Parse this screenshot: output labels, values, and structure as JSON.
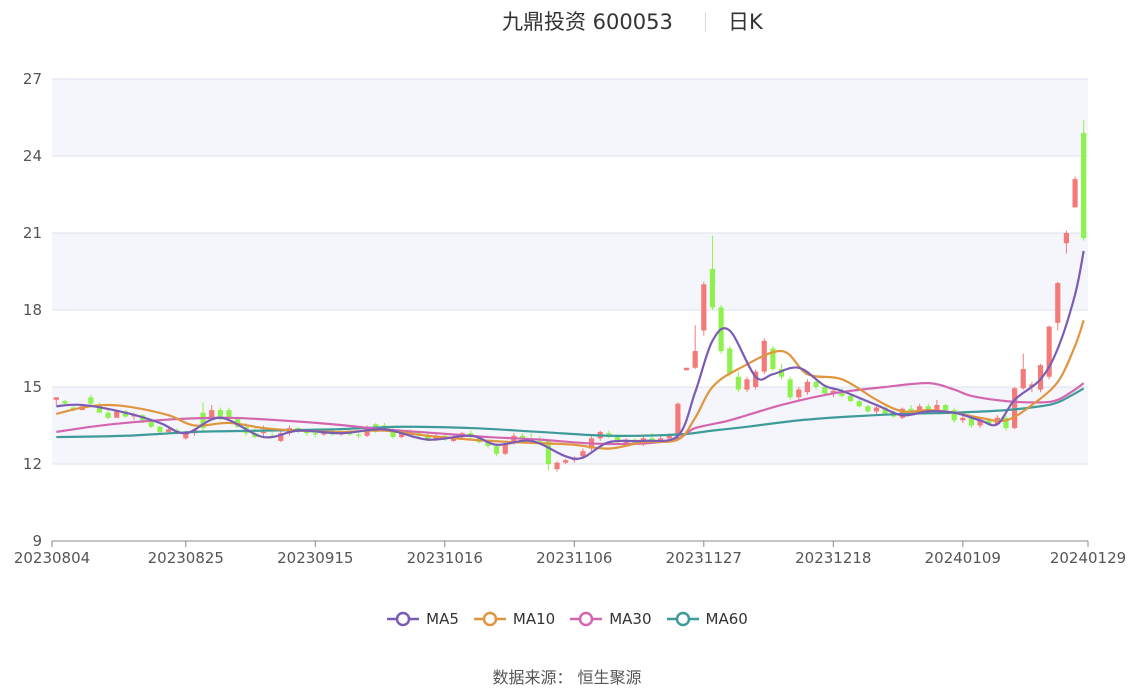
{
  "header": {
    "title": "九鼎投资 600053",
    "subtitle": "日K"
  },
  "source_text": "数据来源： 恒生聚源",
  "colors": {
    "up": "#f47a7a",
    "down": "#8ef24e",
    "MA5": "#7b5cb5",
    "MA10": "#e0963f",
    "MA30": "#d466b0",
    "MA60": "#3f9a9a",
    "band": "#f5f6fb",
    "grid": "#dde1ee",
    "axis": "#555555"
  },
  "legend": [
    {
      "name": "MA5",
      "color": "#7b5cb5"
    },
    {
      "name": "MA10",
      "color": "#e0963f"
    },
    {
      "name": "MA30",
      "color": "#d466b0"
    },
    {
      "name": "MA60",
      "color": "#3f9a9a"
    }
  ],
  "chart_data": {
    "type": "candlestick",
    "title": "九鼎投资 600053",
    "subtitle": "日K",
    "ylim": [
      9,
      27
    ],
    "yticks": [
      9,
      12,
      15,
      18,
      21,
      24,
      27
    ],
    "x_tick_labels": [
      "20230804",
      "20230825",
      "20230915",
      "20231016",
      "20231106",
      "20231127",
      "20231218",
      "20240109",
      "20240129"
    ],
    "x_tick_index": [
      0,
      15,
      30,
      45,
      60,
      75,
      90,
      105,
      119
    ],
    "grid": true,
    "legend_position": "bottom-center",
    "ohlc": [
      [
        14.5,
        14.6,
        14.3,
        14.6
      ],
      [
        14.45,
        14.5,
        14.3,
        14.35
      ],
      [
        14.2,
        14.25,
        14.05,
        14.1
      ],
      [
        14.1,
        14.3,
        14.1,
        14.25
      ],
      [
        14.6,
        14.7,
        14.3,
        14.35
      ],
      [
        14.3,
        14.4,
        14.0,
        14.0
      ],
      [
        14.0,
        14.1,
        13.75,
        13.8
      ],
      [
        13.8,
        14.1,
        13.8,
        14.05
      ],
      [
        14.05,
        14.1,
        13.8,
        13.85
      ],
      [
        13.85,
        14.0,
        13.7,
        13.95
      ],
      [
        13.9,
        13.95,
        13.6,
        13.65
      ],
      [
        13.65,
        13.7,
        13.4,
        13.45
      ],
      [
        13.45,
        13.5,
        13.2,
        13.25
      ],
      [
        13.25,
        13.4,
        13.2,
        13.35
      ],
      [
        13.3,
        13.4,
        13.15,
        13.2
      ],
      [
        13.0,
        13.3,
        12.95,
        13.2
      ],
      [
        13.2,
        13.4,
        13.1,
        13.35
      ],
      [
        14.0,
        14.4,
        13.3,
        13.4
      ],
      [
        13.8,
        14.3,
        13.7,
        14.1
      ],
      [
        14.1,
        14.2,
        13.7,
        13.75
      ],
      [
        14.1,
        14.2,
        13.7,
        13.8
      ],
      [
        13.75,
        13.85,
        13.4,
        13.45
      ],
      [
        13.45,
        13.6,
        13.1,
        13.2
      ],
      [
        13.2,
        13.4,
        13.0,
        13.05
      ],
      [
        13.2,
        13.5,
        13.1,
        13.25
      ],
      [
        13.1,
        13.25,
        13.0,
        13.05
      ],
      [
        12.9,
        13.3,
        12.85,
        13.2
      ],
      [
        13.2,
        13.5,
        13.1,
        13.4
      ],
      [
        13.4,
        13.45,
        13.2,
        13.25
      ],
      [
        13.25,
        13.35,
        13.1,
        13.2
      ],
      [
        13.2,
        13.3,
        13.05,
        13.15
      ],
      [
        13.15,
        13.3,
        13.1,
        13.25
      ],
      [
        13.2,
        13.3,
        13.1,
        13.15
      ],
      [
        13.15,
        13.3,
        13.1,
        13.25
      ],
      [
        13.25,
        13.35,
        13.1,
        13.15
      ],
      [
        13.15,
        13.25,
        13.0,
        13.1
      ],
      [
        13.1,
        13.5,
        13.05,
        13.45
      ],
      [
        13.55,
        13.6,
        13.2,
        13.25
      ],
      [
        13.5,
        13.6,
        13.3,
        13.35
      ],
      [
        13.35,
        13.4,
        13.0,
        13.05
      ],
      [
        13.05,
        13.3,
        13.0,
        13.25
      ],
      [
        13.25,
        13.35,
        13.1,
        13.15
      ],
      [
        13.2,
        13.3,
        13.05,
        13.1
      ],
      [
        13.1,
        13.2,
        12.9,
        12.95
      ],
      [
        12.95,
        13.2,
        12.9,
        13.1
      ],
      [
        13.1,
        13.15,
        12.9,
        12.95
      ],
      [
        12.9,
        13.1,
        12.85,
        13.05
      ],
      [
        13.05,
        13.25,
        13.0,
        13.2
      ],
      [
        13.2,
        13.3,
        13.0,
        13.05
      ],
      [
        13.05,
        13.1,
        12.8,
        12.85
      ],
      [
        12.85,
        12.95,
        12.6,
        12.7
      ],
      [
        12.7,
        12.8,
        12.3,
        12.4
      ],
      [
        12.4,
        12.9,
        12.35,
        12.8
      ],
      [
        12.8,
        13.2,
        12.75,
        13.1
      ],
      [
        13.1,
        13.2,
        12.9,
        12.95
      ],
      [
        12.95,
        13.2,
        12.85,
        12.9
      ],
      [
        12.9,
        13.1,
        12.8,
        12.85
      ],
      [
        12.9,
        12.95,
        11.75,
        12.0
      ],
      [
        11.8,
        12.1,
        11.7,
        12.05
      ],
      [
        12.05,
        12.2,
        12.0,
        12.15
      ],
      [
        12.15,
        12.3,
        12.05,
        12.25
      ],
      [
        12.3,
        12.6,
        12.2,
        12.5
      ],
      [
        12.6,
        13.1,
        12.5,
        13.0
      ],
      [
        13.0,
        13.3,
        12.9,
        13.25
      ],
      [
        13.2,
        13.3,
        13.0,
        13.05
      ],
      [
        13.05,
        13.15,
        12.8,
        12.85
      ],
      [
        12.8,
        13.0,
        12.7,
        12.95
      ],
      [
        12.95,
        13.0,
        12.75,
        12.8
      ],
      [
        12.8,
        13.1,
        12.7,
        13.0
      ],
      [
        13.0,
        13.2,
        12.85,
        12.9
      ],
      [
        12.9,
        13.1,
        12.8,
        13.0
      ],
      [
        13.0,
        13.2,
        12.9,
        13.15
      ],
      [
        13.1,
        14.4,
        13.1,
        14.35
      ],
      [
        15.65,
        15.75,
        15.65,
        15.75
      ],
      [
        15.75,
        17.4,
        15.7,
        16.4
      ],
      [
        17.2,
        19.1,
        17.0,
        19.0
      ],
      [
        19.6,
        20.9,
        18.0,
        18.1
      ],
      [
        18.1,
        18.2,
        16.3,
        16.4
      ],
      [
        16.5,
        16.6,
        15.4,
        15.5
      ],
      [
        15.4,
        15.6,
        14.8,
        14.9
      ],
      [
        14.9,
        15.4,
        14.8,
        15.3
      ],
      [
        15.0,
        15.7,
        14.9,
        15.6
      ],
      [
        15.6,
        16.9,
        15.5,
        16.8
      ],
      [
        16.5,
        16.6,
        15.6,
        15.7
      ],
      [
        15.7,
        15.9,
        15.3,
        15.4
      ],
      [
        15.3,
        15.4,
        14.5,
        14.6
      ],
      [
        14.6,
        15.0,
        14.5,
        14.9
      ],
      [
        14.8,
        15.3,
        14.7,
        15.2
      ],
      [
        15.2,
        15.3,
        14.9,
        15.0
      ],
      [
        15.0,
        15.1,
        14.7,
        14.75
      ],
      [
        14.75,
        14.9,
        14.6,
        14.85
      ],
      [
        14.85,
        14.95,
        14.6,
        14.65
      ],
      [
        14.65,
        14.7,
        14.4,
        14.45
      ],
      [
        14.45,
        14.55,
        14.2,
        14.25
      ],
      [
        14.25,
        14.3,
        14.0,
        14.05
      ],
      [
        14.05,
        14.3,
        13.95,
        14.2
      ],
      [
        14.2,
        14.3,
        13.9,
        13.95
      ],
      [
        13.95,
        14.1,
        13.8,
        13.85
      ],
      [
        13.8,
        14.2,
        13.75,
        14.15
      ],
      [
        14.15,
        14.3,
        14.0,
        14.05
      ],
      [
        14.05,
        14.35,
        14.0,
        14.25
      ],
      [
        14.25,
        14.35,
        14.05,
        14.1
      ],
      [
        14.1,
        14.5,
        14.05,
        14.3
      ],
      [
        14.3,
        14.35,
        14.05,
        14.1
      ],
      [
        14.1,
        14.2,
        13.6,
        13.7
      ],
      [
        13.7,
        13.9,
        13.6,
        13.8
      ],
      [
        13.8,
        13.85,
        13.4,
        13.5
      ],
      [
        13.5,
        13.8,
        13.4,
        13.7
      ],
      [
        13.7,
        13.8,
        13.5,
        13.55
      ],
      [
        13.55,
        13.9,
        13.5,
        13.8
      ],
      [
        13.8,
        13.9,
        13.3,
        13.4
      ],
      [
        13.4,
        15.0,
        13.35,
        14.95
      ],
      [
        14.95,
        16.3,
        14.9,
        15.7
      ],
      [
        15.0,
        15.2,
        14.8,
        15.1
      ],
      [
        14.9,
        15.9,
        14.8,
        15.85
      ],
      [
        15.4,
        17.4,
        15.3,
        17.35
      ],
      [
        17.5,
        19.1,
        17.2,
        19.05
      ],
      [
        20.6,
        21.1,
        20.2,
        21.0
      ],
      [
        22.0,
        23.2,
        22.0,
        23.1
      ],
      [
        24.9,
        25.4,
        20.7,
        20.8
      ]
    ],
    "ma": {
      "MA5": [
        [
          0,
          14.25
        ],
        [
          3,
          14.3
        ],
        [
          8,
          14.0
        ],
        [
          12,
          13.6
        ],
        [
          15,
          13.2
        ],
        [
          19,
          13.8
        ],
        [
          24,
          13.05
        ],
        [
          28,
          13.3
        ],
        [
          33,
          13.2
        ],
        [
          38,
          13.35
        ],
        [
          43,
          12.95
        ],
        [
          48,
          13.1
        ],
        [
          51,
          12.75
        ],
        [
          55,
          12.9
        ],
        [
          59,
          12.3
        ],
        [
          61,
          12.25
        ],
        [
          64,
          12.85
        ],
        [
          68,
          12.9
        ],
        [
          72,
          13.1
        ],
        [
          74,
          14.8
        ],
        [
          76,
          16.8
        ],
        [
          78,
          17.2
        ],
        [
          81,
          15.4
        ],
        [
          83,
          15.5
        ],
        [
          86,
          15.75
        ],
        [
          89,
          15.05
        ],
        [
          91,
          14.85
        ],
        [
          95,
          14.3
        ],
        [
          98,
          13.9
        ],
        [
          101,
          14.05
        ],
        [
          104,
          14.0
        ],
        [
          107,
          13.7
        ],
        [
          109,
          13.55
        ],
        [
          111,
          14.5
        ],
        [
          114,
          15.3
        ],
        [
          116,
          16.5
        ],
        [
          118,
          18.6
        ],
        [
          119,
          20.3
        ]
      ],
      "MA10": [
        [
          0,
          13.95
        ],
        [
          3,
          14.2
        ],
        [
          6,
          14.3
        ],
        [
          9,
          14.2
        ],
        [
          13,
          13.9
        ],
        [
          16,
          13.5
        ],
        [
          20,
          13.6
        ],
        [
          24,
          13.4
        ],
        [
          28,
          13.3
        ],
        [
          33,
          13.25
        ],
        [
          38,
          13.3
        ],
        [
          43,
          13.1
        ],
        [
          48,
          12.95
        ],
        [
          53,
          12.85
        ],
        [
          57,
          12.8
        ],
        [
          60,
          12.75
        ],
        [
          64,
          12.6
        ],
        [
          68,
          12.85
        ],
        [
          72,
          12.95
        ],
        [
          74,
          13.8
        ],
        [
          76,
          15.0
        ],
        [
          79,
          15.7
        ],
        [
          84,
          16.4
        ],
        [
          87,
          15.5
        ],
        [
          91,
          15.3
        ],
        [
          95,
          14.5
        ],
        [
          98,
          14.05
        ],
        [
          101,
          14.1
        ],
        [
          104,
          14.0
        ],
        [
          107,
          13.8
        ],
        [
          110,
          13.7
        ],
        [
          113,
          14.3
        ],
        [
          116,
          15.2
        ],
        [
          118,
          16.6
        ],
        [
          119,
          17.6
        ]
      ],
      "MA30": [
        [
          0,
          13.25
        ],
        [
          4,
          13.45
        ],
        [
          8,
          13.6
        ],
        [
          14,
          13.75
        ],
        [
          20,
          13.8
        ],
        [
          26,
          13.7
        ],
        [
          32,
          13.55
        ],
        [
          38,
          13.35
        ],
        [
          44,
          13.2
        ],
        [
          50,
          13.05
        ],
        [
          56,
          12.95
        ],
        [
          62,
          12.8
        ],
        [
          68,
          12.8
        ],
        [
          72,
          13.0
        ],
        [
          74,
          13.4
        ],
        [
          78,
          13.7
        ],
        [
          84,
          14.3
        ],
        [
          90,
          14.75
        ],
        [
          96,
          15.0
        ],
        [
          101,
          15.15
        ],
        [
          104,
          14.9
        ],
        [
          106,
          14.65
        ],
        [
          110,
          14.45
        ],
        [
          114,
          14.4
        ],
        [
          116,
          14.5
        ],
        [
          118,
          14.9
        ],
        [
          119,
          15.15
        ]
      ],
      "MA60": [
        [
          0,
          13.05
        ],
        [
          8,
          13.1
        ],
        [
          16,
          13.25
        ],
        [
          24,
          13.3
        ],
        [
          32,
          13.35
        ],
        [
          40,
          13.45
        ],
        [
          48,
          13.4
        ],
        [
          56,
          13.25
        ],
        [
          64,
          13.1
        ],
        [
          72,
          13.15
        ],
        [
          76,
          13.3
        ],
        [
          80,
          13.45
        ],
        [
          86,
          13.7
        ],
        [
          92,
          13.85
        ],
        [
          98,
          13.95
        ],
        [
          104,
          14.0
        ],
        [
          110,
          14.1
        ],
        [
          114,
          14.25
        ],
        [
          116,
          14.4
        ],
        [
          118,
          14.75
        ],
        [
          119,
          14.95
        ]
      ]
    }
  }
}
